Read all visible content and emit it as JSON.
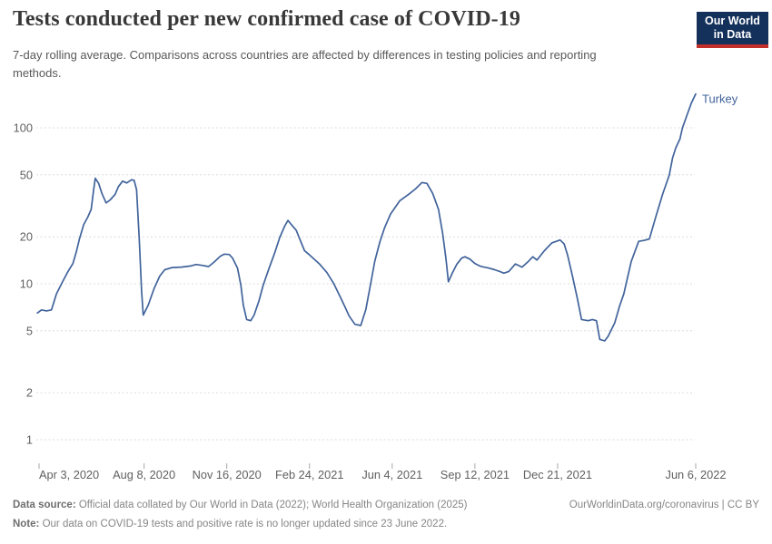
{
  "header": {
    "title": "Tests conducted per new confirmed case of COVID-19",
    "subtitle": "7-day rolling average. Comparisons across countries are affected by differences in testing policies and reporting methods."
  },
  "logo": {
    "line1": "Our World",
    "line2": "in Data",
    "bg_color": "#14315B",
    "stripe_color": "#C32F2A"
  },
  "footer": {
    "source_label": "Data source:",
    "source_text": " Official data collated by Our World in Data (2022); World Health Organization (2025)",
    "link_text": "OurWorldinData.org/coronavirus | CC BY",
    "note_label": "Note:",
    "note_text": " Our data on COVID-19 tests and positive rate is no longer updated since 23 June 2022."
  },
  "chart_data": {
    "type": "line",
    "title": "Tests conducted per new confirmed case of COVID-19",
    "xlabel": "",
    "ylabel": "",
    "y_scale": "log",
    "ylim": [
      1,
      185
    ],
    "grid": "horizontal-dashed",
    "grid_color": "#dcdcdc",
    "tick_text_color": "#606060",
    "y_ticks": [
      {
        "value": 1,
        "label": "1"
      },
      {
        "value": 2,
        "label": "2"
      },
      {
        "value": 5,
        "label": "5"
      },
      {
        "value": 10,
        "label": "10"
      },
      {
        "value": 20,
        "label": "20"
      },
      {
        "value": 50,
        "label": "50"
      },
      {
        "value": 100,
        "label": "100"
      }
    ],
    "x_ticks": [
      {
        "label": "Apr 3, 2020",
        "date": "2020-04-03"
      },
      {
        "label": "Aug 8, 2020",
        "date": "2020-08-08"
      },
      {
        "label": "Nov 16, 2020",
        "date": "2020-11-16"
      },
      {
        "label": "Feb 24, 2021",
        "date": "2021-02-24"
      },
      {
        "label": "Jun 4, 2021",
        "date": "2021-06-04"
      },
      {
        "label": "Sep 12, 2021",
        "date": "2021-09-12"
      },
      {
        "label": "Dec 21, 2021",
        "date": "2021-12-21"
      },
      {
        "label": "Jun 6, 2022",
        "date": "2022-06-06"
      }
    ],
    "legend_position": "end-of-line-label",
    "series": [
      {
        "name": "Turkey",
        "color": "#41639B",
        "points": [
          [
            "2020-04-01",
            6.5
          ],
          [
            "2020-04-06",
            6.8
          ],
          [
            "2020-04-12",
            6.7
          ],
          [
            "2020-04-18",
            6.8
          ],
          [
            "2020-04-24",
            8.6
          ],
          [
            "2020-05-01",
            10.2
          ],
          [
            "2020-05-08",
            12.0
          ],
          [
            "2020-05-14",
            13.5
          ],
          [
            "2020-05-18",
            16.0
          ],
          [
            "2020-05-22",
            19.5
          ],
          [
            "2020-05-27",
            24.0
          ],
          [
            "2020-06-01",
            26.8
          ],
          [
            "2020-06-05",
            30.0
          ],
          [
            "2020-06-08",
            40.0
          ],
          [
            "2020-06-10",
            47.5
          ],
          [
            "2020-06-14",
            44.0
          ],
          [
            "2020-06-18",
            38.0
          ],
          [
            "2020-06-23",
            33.0
          ],
          [
            "2020-06-28",
            34.5
          ],
          [
            "2020-07-04",
            37.5
          ],
          [
            "2020-07-08",
            42.0
          ],
          [
            "2020-07-13",
            45.5
          ],
          [
            "2020-07-18",
            44.3
          ],
          [
            "2020-07-24",
            46.5
          ],
          [
            "2020-07-27",
            46.0
          ],
          [
            "2020-07-30",
            40.0
          ],
          [
            "2020-08-02",
            20.0
          ],
          [
            "2020-08-05",
            9.0
          ],
          [
            "2020-08-07",
            6.3
          ],
          [
            "2020-08-13",
            7.3
          ],
          [
            "2020-08-20",
            9.3
          ],
          [
            "2020-08-27",
            11.2
          ],
          [
            "2020-09-02",
            12.3
          ],
          [
            "2020-09-11",
            12.7
          ],
          [
            "2020-09-22",
            12.8
          ],
          [
            "2020-10-03",
            13.0
          ],
          [
            "2020-10-10",
            13.3
          ],
          [
            "2020-10-18",
            13.1
          ],
          [
            "2020-10-25",
            12.9
          ],
          [
            "2020-11-01",
            13.8
          ],
          [
            "2020-11-08",
            15.0
          ],
          [
            "2020-11-13",
            15.5
          ],
          [
            "2020-11-19",
            15.4
          ],
          [
            "2020-11-23",
            14.6
          ],
          [
            "2020-11-29",
            12.6
          ],
          [
            "2020-12-03",
            9.8
          ],
          [
            "2020-12-06",
            7.3
          ],
          [
            "2020-12-10",
            5.9
          ],
          [
            "2020-12-15",
            5.8
          ],
          [
            "2020-12-19",
            6.3
          ],
          [
            "2020-12-25",
            7.8
          ],
          [
            "2020-12-30",
            9.8
          ],
          [
            "2021-01-06",
            12.5
          ],
          [
            "2021-01-13",
            15.8
          ],
          [
            "2021-01-19",
            19.8
          ],
          [
            "2021-01-25",
            23.4
          ],
          [
            "2021-01-29",
            25.5
          ],
          [
            "2021-02-02",
            24.0
          ],
          [
            "2021-02-08",
            22.0
          ],
          [
            "2021-02-12",
            19.5
          ],
          [
            "2021-02-18",
            16.3
          ],
          [
            "2021-02-23",
            15.5
          ],
          [
            "2021-03-01",
            14.5
          ],
          [
            "2021-03-08",
            13.4
          ],
          [
            "2021-03-17",
            11.8
          ],
          [
            "2021-03-25",
            10.1
          ],
          [
            "2021-04-01",
            8.5
          ],
          [
            "2021-04-08",
            7.1
          ],
          [
            "2021-04-13",
            6.2
          ],
          [
            "2021-04-20",
            5.5
          ],
          [
            "2021-04-27",
            5.4
          ],
          [
            "2021-05-03",
            6.8
          ],
          [
            "2021-05-09",
            10.0
          ],
          [
            "2021-05-14",
            14.0
          ],
          [
            "2021-05-20",
            18.5
          ],
          [
            "2021-05-26",
            23.0
          ],
          [
            "2021-06-02",
            28.0
          ],
          [
            "2021-06-13",
            34.0
          ],
          [
            "2021-06-24",
            37.5
          ],
          [
            "2021-07-02",
            40.5
          ],
          [
            "2021-07-10",
            44.6
          ],
          [
            "2021-07-16",
            44.0
          ],
          [
            "2021-07-23",
            38.0
          ],
          [
            "2021-07-30",
            30.0
          ],
          [
            "2021-08-04",
            21.0
          ],
          [
            "2021-08-08",
            14.5
          ],
          [
            "2021-08-11",
            10.3
          ],
          [
            "2021-08-16",
            11.8
          ],
          [
            "2021-08-21",
            13.3
          ],
          [
            "2021-08-27",
            14.6
          ],
          [
            "2021-08-31",
            14.9
          ],
          [
            "2021-09-06",
            14.4
          ],
          [
            "2021-09-12",
            13.5
          ],
          [
            "2021-09-18",
            13.0
          ],
          [
            "2021-09-23",
            12.8
          ],
          [
            "2021-09-29",
            12.6
          ],
          [
            "2021-10-06",
            12.3
          ],
          [
            "2021-10-12",
            12.0
          ],
          [
            "2021-10-17",
            11.7
          ],
          [
            "2021-10-23",
            12.0
          ],
          [
            "2021-10-31",
            13.4
          ],
          [
            "2021-11-08",
            12.8
          ],
          [
            "2021-11-15",
            13.8
          ],
          [
            "2021-11-21",
            14.9
          ],
          [
            "2021-11-26",
            14.2
          ],
          [
            "2021-12-05",
            16.3
          ],
          [
            "2021-12-14",
            18.3
          ],
          [
            "2021-12-24",
            19.1
          ],
          [
            "2021-12-29",
            18.0
          ],
          [
            "2022-01-02",
            15.3
          ],
          [
            "2022-01-08",
            11.2
          ],
          [
            "2022-01-14",
            8.0
          ],
          [
            "2022-01-19",
            5.9
          ],
          [
            "2022-01-27",
            5.8
          ],
          [
            "2022-02-01",
            5.9
          ],
          [
            "2022-02-06",
            5.8
          ],
          [
            "2022-02-10",
            4.4
          ],
          [
            "2022-02-16",
            4.3
          ],
          [
            "2022-02-20",
            4.6
          ],
          [
            "2022-02-28",
            5.6
          ],
          [
            "2022-03-06",
            7.2
          ],
          [
            "2022-03-11",
            8.6
          ],
          [
            "2022-03-20",
            13.9
          ],
          [
            "2022-03-29",
            18.7
          ],
          [
            "2022-04-05",
            19.0
          ],
          [
            "2022-04-11",
            19.4
          ],
          [
            "2022-04-19",
            27.2
          ],
          [
            "2022-04-27",
            37.6
          ],
          [
            "2022-05-05",
            49.8
          ],
          [
            "2022-05-09",
            64.0
          ],
          [
            "2022-05-13",
            74.5
          ],
          [
            "2022-05-18",
            85.0
          ],
          [
            "2022-05-21",
            100.0
          ],
          [
            "2022-05-28",
            127.0
          ],
          [
            "2022-06-01",
            145.0
          ],
          [
            "2022-06-06",
            165.0
          ]
        ]
      }
    ]
  }
}
